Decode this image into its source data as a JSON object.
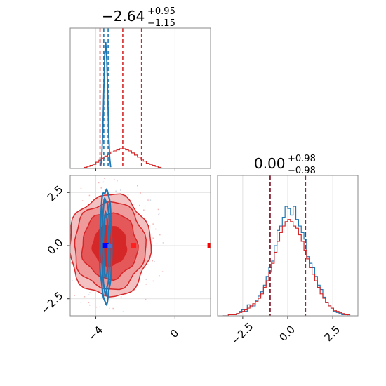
{
  "chart_data": [
    {
      "type": "histogram",
      "panel": "top-left",
      "title": {
        "main": "−2.64",
        "sup": "+0.95",
        "sub": "−1.15"
      },
      "xlim": [
        -5.3,
        1.8
      ],
      "grid": true,
      "bins": [
        -4.6,
        -4.45,
        -4.3,
        -4.15,
        -4.0,
        -3.85,
        -3.7,
        -3.55,
        -3.4,
        -3.25,
        -3.1,
        -2.95,
        -2.8,
        -2.65,
        -2.5,
        -2.35,
        -2.2,
        -2.05,
        -1.9,
        -1.75,
        -1.6,
        -1.45,
        -1.3,
        -1.15,
        -1.0,
        -0.85
      ],
      "series": [
        {
          "color": "#d62728",
          "counts": [
            1,
            2,
            3,
            4,
            6,
            8,
            10,
            12,
            14,
            16,
            17,
            18,
            19,
            19,
            18,
            17,
            15,
            13,
            11,
            9,
            7,
            5,
            4,
            3,
            2,
            1
          ]
        },
        {
          "color": "#1f77b4",
          "narrow": true,
          "x": [
            -3.75,
            -3.7,
            -3.65,
            -3.6,
            -3.55,
            -3.5,
            -3.45,
            -3.4,
            -3.35,
            -3.3,
            -3.25
          ],
          "density": [
            0.02,
            0.1,
            0.3,
            0.62,
            0.9,
            1.0,
            0.86,
            0.58,
            0.28,
            0.08,
            0.01
          ]
        }
      ],
      "vlines": [
        {
          "x": -3.79,
          "color": "#d62728",
          "style": "dashed"
        },
        {
          "x": -2.64,
          "color": "#d62728",
          "style": "dashed"
        },
        {
          "x": -1.69,
          "color": "#d62728",
          "style": "dashed"
        },
        {
          "x": -3.6,
          "color": "#1f77b4",
          "style": "dashed"
        },
        {
          "x": -3.38,
          "color": "#1f77b4",
          "style": "dashed"
        }
      ]
    },
    {
      "type": "contour",
      "panel": "bottom-left",
      "xlim": [
        -5.3,
        1.8
      ],
      "ylim": [
        -3.3,
        3.3
      ],
      "xticks": [
        -4,
        0
      ],
      "xtick_labels": [
        "−4",
        "0"
      ],
      "yticks": [
        -2.5,
        0.0,
        2.5
      ],
      "ytick_labels": [
        "−2.5",
        "0.0",
        "2.5"
      ],
      "grid": true,
      "series": [
        {
          "color": "#d62728",
          "center": [
            -3.3,
            0.0
          ],
          "levels": [
            {
              "rx": 2.05,
              "ry": 2.4,
              "fill": "#f3c1c1",
              "stroke": "#d62728"
            },
            {
              "rx": 1.8,
              "ry": 2.05,
              "fill": "#ef9b9c",
              "stroke": "#d62728"
            },
            {
              "rx": 1.4,
              "ry": 1.55,
              "fill": "#e5585a",
              "stroke": "#d62728"
            },
            {
              "rx": 0.85,
              "ry": 0.95,
              "fill": "#d62728",
              "stroke": "#d62728"
            }
          ],
          "peak": [
            -2.1,
            0.0
          ]
        },
        {
          "color": "#1f77b4",
          "center": [
            -3.5,
            0.0
          ],
          "levels": [
            {
              "rx": 0.3,
              "ry": 2.65,
              "stroke": "#1f77b4"
            },
            {
              "rx": 0.2,
              "ry": 2.2,
              "stroke": "#1f77b4"
            },
            {
              "rx": 0.12,
              "ry": 1.5,
              "stroke": "#1f77b4"
            }
          ],
          "peak": [
            -3.5,
            0.0
          ]
        }
      ],
      "outlier_marker": {
        "x": 1.75,
        "y": 0.0,
        "color": "#ff0000"
      }
    },
    {
      "type": "histogram",
      "panel": "bottom-right",
      "title": {
        "main": "0.00",
        "sup": "+0.98",
        "sub": "−0.98"
      },
      "xlim": [
        -3.9,
        3.9
      ],
      "xticks": [
        -2.5,
        0.0,
        2.5
      ],
      "xtick_labels": [
        "−2.5",
        "0.0",
        "2.5"
      ],
      "grid": true,
      "bins": [
        -3.6,
        -3.45,
        -3.3,
        -3.15,
        -3.0,
        -2.85,
        -2.7,
        -2.55,
        -2.4,
        -2.25,
        -2.1,
        -1.95,
        -1.8,
        -1.65,
        -1.5,
        -1.35,
        -1.2,
        -1.05,
        -0.9,
        -0.75,
        -0.6,
        -0.45,
        -0.3,
        -0.15,
        0.0,
        0.15,
        0.3,
        0.45,
        0.6,
        0.75,
        0.9,
        1.05,
        1.2,
        1.35,
        1.5,
        1.65,
        1.8,
        1.95,
        2.1,
        2.25,
        2.4,
        2.55,
        2.7,
        2.85,
        3.0,
        3.15,
        3.3,
        3.45
      ],
      "series": [
        {
          "color": "#1f77b4",
          "counts": [
            0,
            0,
            1,
            1,
            1,
            2,
            4,
            6,
            4,
            10,
            8,
            9,
            14,
            18,
            22,
            28,
            36,
            44,
            50,
            64,
            78,
            82,
            90,
            100,
            98,
            92,
            100,
            88,
            82,
            76,
            70,
            54,
            48,
            44,
            36,
            28,
            24,
            17,
            12,
            9,
            7,
            4,
            3,
            2,
            1,
            1,
            0
          ]
        },
        {
          "color": "#d62728",
          "counts": [
            0,
            0,
            1,
            1,
            1,
            2,
            3,
            4,
            6,
            7,
            9,
            11,
            13,
            16,
            20,
            26,
            32,
            40,
            48,
            58,
            68,
            76,
            82,
            86,
            88,
            86,
            82,
            80,
            74,
            68,
            60,
            52,
            44,
            38,
            32,
            26,
            20,
            16,
            12,
            9,
            7,
            5,
            4,
            3,
            2,
            1,
            1
          ]
        }
      ],
      "vlines": [
        {
          "x": -0.98,
          "color": "#8b2a3a",
          "style": "dashed"
        },
        {
          "x": 0.98,
          "color": "#8b2a3a",
          "style": "dashed"
        }
      ]
    }
  ]
}
